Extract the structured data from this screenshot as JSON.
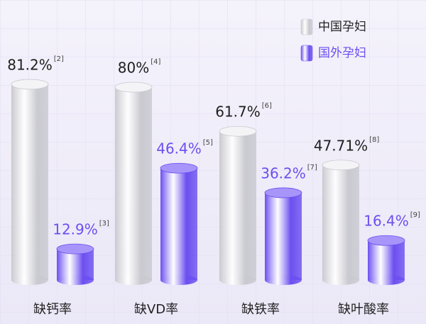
{
  "chart_data": {
    "type": "bar",
    "categories": [
      "缺钙率",
      "缺VD率",
      "缺铁率",
      "缺叶酸率"
    ],
    "series": [
      {
        "name": "中国孕妇",
        "color": "#c9c9d0",
        "values": [
          81.2,
          80,
          61.7,
          47.71
        ],
        "value_labels": [
          "81.2%",
          "80%",
          "61.7%",
          "47.71%"
        ],
        "notes": [
          "[2]",
          "[4]",
          "[6]",
          "[8]"
        ]
      },
      {
        "name": "国外孕妇",
        "color": "#6c4ff0",
        "values": [
          12.9,
          46.4,
          36.2,
          16.4
        ],
        "value_labels": [
          "12.9%",
          "46.4%",
          "36.2%",
          "16.4%"
        ],
        "notes": [
          "[3]",
          "[5]",
          "[7]",
          "[9]"
        ]
      }
    ],
    "legend": "top-right"
  }
}
